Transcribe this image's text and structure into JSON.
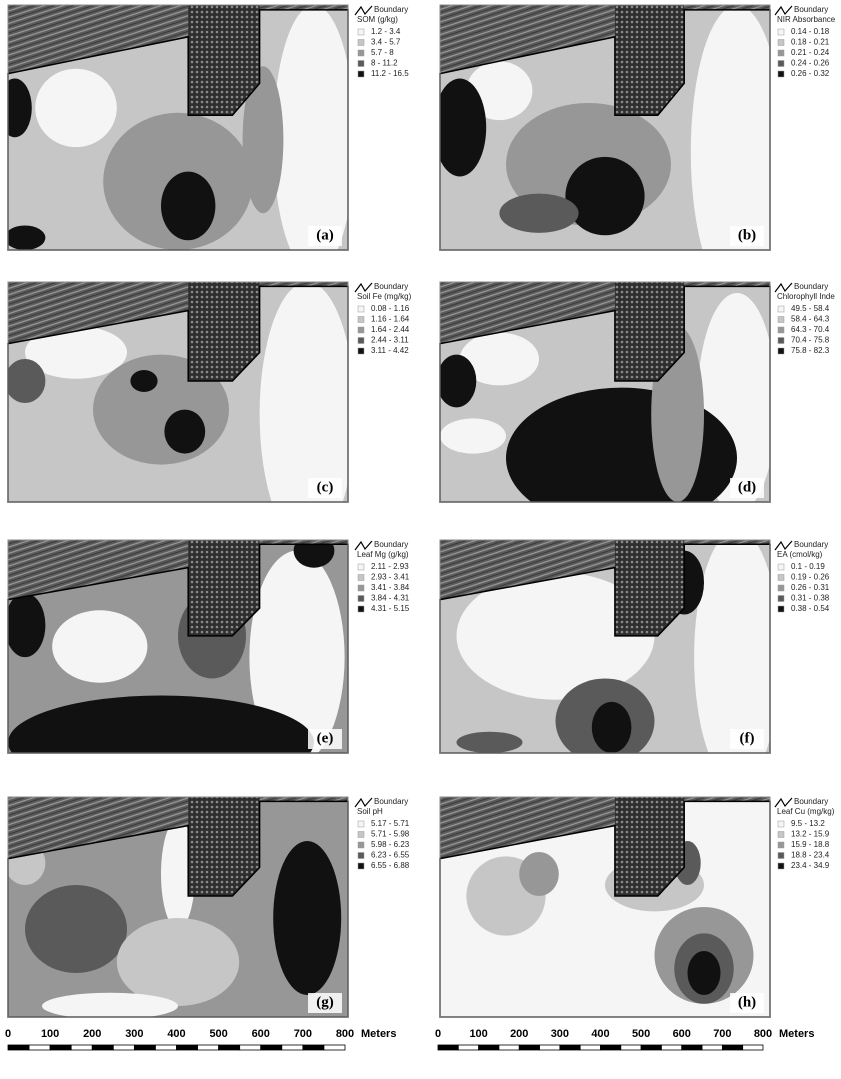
{
  "panels": [
    {
      "label": "(a)",
      "legend": {
        "boundary": "Boundary",
        "title": "SOM (g/kg)",
        "classes": [
          "1.2 - 3.4",
          "3.4 - 5.7",
          "5.7 - 8",
          "8 - 11.2",
          "11.2 - 16.5"
        ]
      }
    },
    {
      "label": "(b)",
      "legend": {
        "boundary": "Boundary",
        "title": "NIR Absorbance",
        "classes": [
          "0.14 - 0.18",
          "0.18 - 0.21",
          "0.21 - 0.24",
          "0.24 - 0.26",
          "0.26 - 0.32"
        ]
      }
    },
    {
      "label": "(c)",
      "legend": {
        "boundary": "Boundary",
        "title": "Soil Fe (mg/kg)",
        "classes": [
          "0.08 - 1.16",
          "1.16 - 1.64",
          "1.64 - 2.44",
          "2.44 - 3.11",
          "3.11 - 4.42"
        ]
      }
    },
    {
      "label": "(d)",
      "legend": {
        "boundary": "Boundary",
        "title": "Chlorophyll Inde",
        "classes": [
          "49.5 - 58.4",
          "58.4 - 64.3",
          "64.3 - 70.4",
          "70.4 - 75.8",
          "75.8 - 82.3"
        ]
      }
    },
    {
      "label": "(e)",
      "legend": {
        "boundary": "Boundary",
        "title": "Leaf Mg (g/kg)",
        "classes": [
          "2.11 - 2.93",
          "2.93 - 3.41",
          "3.41 - 3.84",
          "3.84 - 4.31",
          "4.31 - 5.15"
        ]
      }
    },
    {
      "label": "(f)",
      "legend": {
        "boundary": "Boundary",
        "title": "EA (cmol/kg)",
        "classes": [
          "0.1 - 0.19",
          "0.19 - 0.26",
          "0.26 - 0.31",
          "0.31 - 0.38",
          "0.38 - 0.54"
        ]
      }
    },
    {
      "label": "(g)",
      "legend": {
        "boundary": "Boundary",
        "title": "Soil pH",
        "classes": [
          "5.17 - 5.71",
          "5.71 - 5.98",
          "5.98 - 6.23",
          "6.23 - 6.55",
          "6.55 - 6.88"
        ]
      }
    },
    {
      "label": "(h)",
      "legend": {
        "boundary": "Boundary",
        "title": "Leaf Cu (mg/kg)",
        "classes": [
          "9.5 - 13.2",
          "13.2 - 15.9",
          "15.9 - 18.8",
          "18.8 - 23.4",
          "23.4 - 34.9"
        ]
      }
    }
  ],
  "scale_bars": [
    {
      "ticks": [
        0,
        100,
        200,
        300,
        400,
        500,
        600,
        700,
        800
      ],
      "unit": "Meters"
    },
    {
      "ticks": [
        0,
        100,
        200,
        300,
        400,
        500,
        600,
        700,
        800
      ],
      "unit": "Meters"
    }
  ]
}
